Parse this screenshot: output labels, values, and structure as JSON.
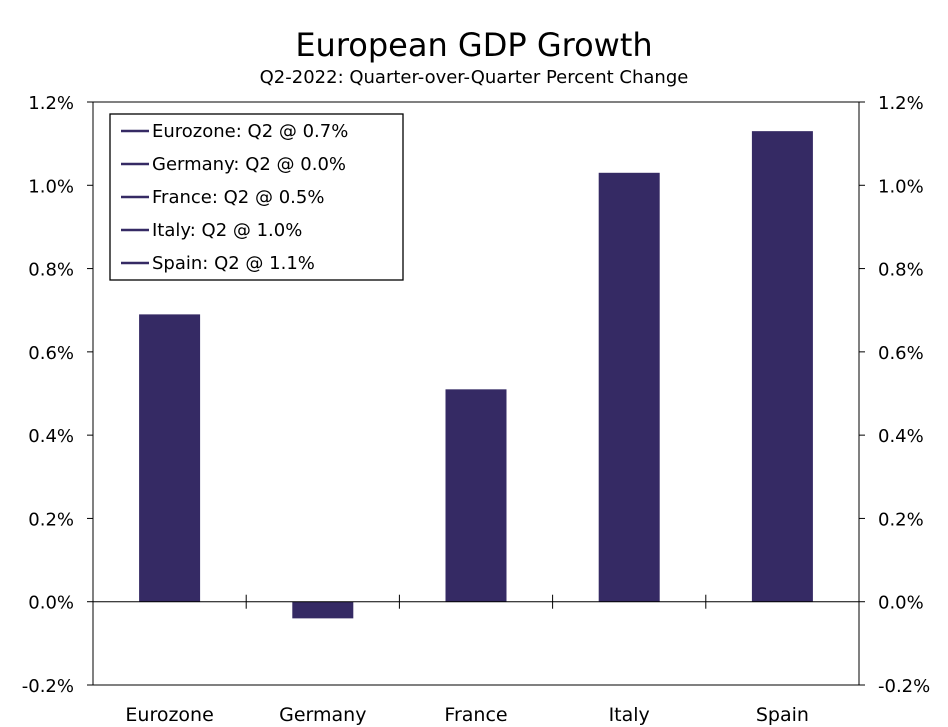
{
  "chart_data": {
    "type": "bar",
    "title": "European GDP Growth",
    "subtitle": "Q2-2022: Quarter-over-Quarter Percent Change",
    "categories": [
      "Eurozone",
      "Germany",
      "France",
      "Italy",
      "Spain"
    ],
    "values": [
      0.69,
      -0.04,
      0.51,
      1.03,
      1.13
    ],
    "xlabel": "",
    "ylabel": "",
    "ylim": [
      -0.2,
      1.2
    ],
    "yticks": [
      -0.2,
      0.0,
      0.2,
      0.4,
      0.6,
      0.8,
      1.0,
      1.2
    ],
    "ytick_labels": [
      "-0.2%",
      "0.0%",
      "0.2%",
      "0.4%",
      "0.6%",
      "0.8%",
      "1.0%",
      "1.2%"
    ],
    "grid": false,
    "legend_position": "top-left",
    "legend": [
      "Eurozone: Q2 @ 0.7%",
      "Germany: Q2 @ 0.0%",
      "France: Q2 @ 0.5%",
      "Italy: Q2 @ 1.0%",
      "Spain: Q2 @ 1.1%"
    ],
    "bar_color": "#352a64"
  }
}
